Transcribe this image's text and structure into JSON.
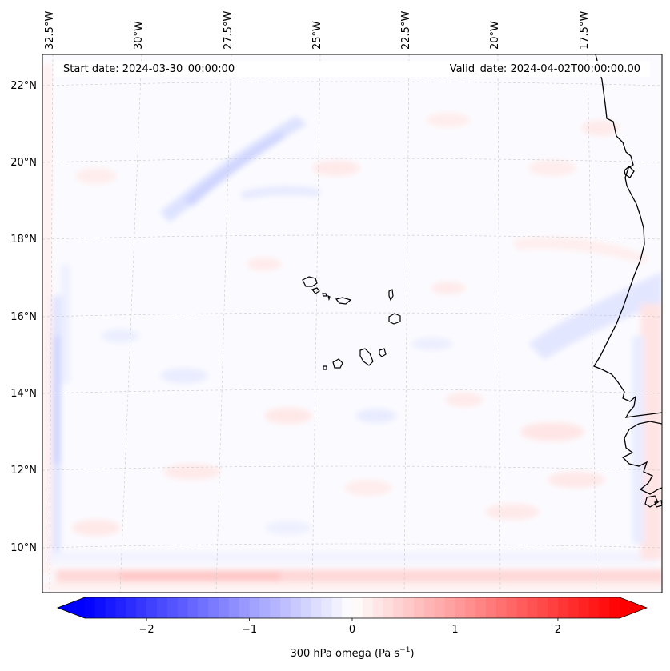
{
  "map": {
    "start_date": "Start date: 2024-03-30_00:00:00",
    "valid_date": "Valid_date: 2024-04-02T00:00:00.00",
    "lon_labels": [
      "32.5°W",
      "30°W",
      "27.5°W",
      "25°W",
      "22.5°W",
      "20°W",
      "17.5°W"
    ],
    "lat_labels": [
      "22°N",
      "20°N",
      "18°N",
      "16°N",
      "14°N",
      "12°N",
      "10°N"
    ]
  },
  "colorbar": {
    "ticks": [
      "−2",
      "−1",
      "0",
      "1",
      "2"
    ],
    "tick_values": [
      -2,
      -1,
      0,
      1,
      2
    ],
    "range": [
      -2.6,
      2.6
    ],
    "label_main": "300 hPa omega (Pa s",
    "label_exp": "−1",
    "label_close": ")",
    "colors": {
      "low": "#0000ff",
      "mid": "#ffffff",
      "high": "#ff0000"
    }
  }
}
